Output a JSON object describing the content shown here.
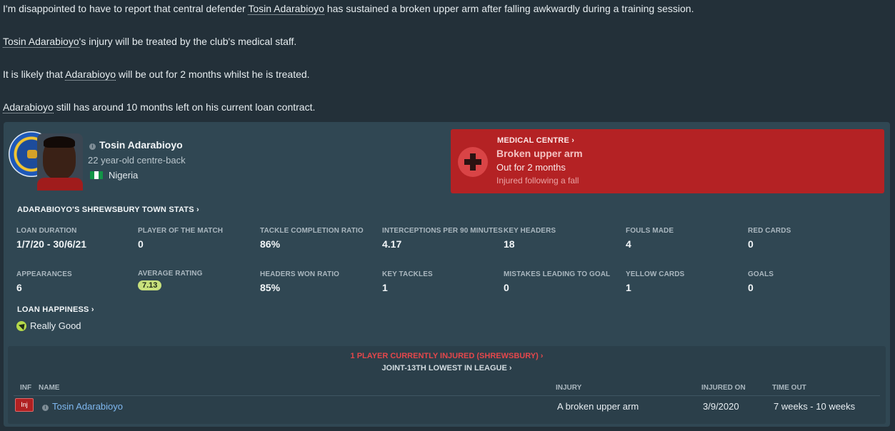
{
  "news": {
    "p1_a": "I'm disappointed to have to report that central defender ",
    "p1_link": "Tosin Adarabioyo",
    "p1_b": " has sustained a broken upper arm after falling awkwardly during a training session.",
    "p2_link": "Tosin Adarabioyo",
    "p2_b": "'s injury will be treated by the club's medical staff.",
    "p3_a": "It is likely that ",
    "p3_link": "Adarabioyo",
    "p3_b": " will be out for 2 months whilst he is treated.",
    "p4_link": "Adarabioyo",
    "p4_b": " still has around 10 months left on his current loan contract."
  },
  "player": {
    "name": "Tosin Adarabioyo",
    "description": "22 year-old centre-back",
    "nationality": "Nigeria"
  },
  "medical": {
    "title": "MEDICAL CENTRE ›",
    "injury": "Broken upper arm",
    "duration": "Out for 2 months",
    "cause": "Injured following a fall"
  },
  "stats": {
    "title": "ADARABIOYO'S SHREWSBURY TOWN STATS ›",
    "loan_duration_label": "LOAN DURATION",
    "loan_duration": "1/7/20 - 30/6/21",
    "potm_label": "PLAYER OF THE MATCH",
    "potm": "0",
    "tackle_ratio_label": "TACKLE COMPLETION RATIO",
    "tackle_ratio": "86%",
    "interceptions_label": "INTERCEPTIONS PER 90 MINUTES",
    "interceptions": "4.17",
    "key_headers_label": "KEY HEADERS",
    "key_headers": "18",
    "fouls_label": "FOULS MADE",
    "fouls": "4",
    "red_cards_label": "RED CARDS",
    "red_cards": "0",
    "appearances_label": "APPEARANCES",
    "appearances": "6",
    "avg_rating_label": "AVERAGE RATING",
    "avg_rating": "7.13",
    "headers_ratio_label": "HEADERS WON RATIO",
    "headers_ratio": "85%",
    "key_tackles_label": "KEY TACKLES",
    "key_tackles": "1",
    "mistakes_label": "MISTAKES LEADING TO GOAL",
    "mistakes": "0",
    "yellow_cards_label": "YELLOW CARDS",
    "yellow_cards": "1",
    "goals_label": "GOALS",
    "goals": "0"
  },
  "happiness": {
    "title": "LOAN HAPPINESS ›",
    "value": "Really Good"
  },
  "injured": {
    "headline": "1 PLAYER CURRENTLY INJURED (SHREWSBURY) ›",
    "subline": "JOINT-13TH LOWEST IN LEAGUE ›",
    "columns": {
      "inf": "INF",
      "name": "NAME",
      "injury": "INJURY",
      "injured_on": "INJURED ON",
      "time_out": "TIME OUT"
    },
    "row": {
      "badge": "Inj",
      "name": "Tosin Adarabioyo",
      "injury": "A broken upper arm",
      "injured_on": "3/9/2020",
      "time_out": "7 weeks - 10 weeks"
    }
  },
  "colors": {
    "panel": "#304753",
    "medical": "#b42224",
    "rating": "#c8e07c",
    "injured_headline": "#e6474b"
  }
}
